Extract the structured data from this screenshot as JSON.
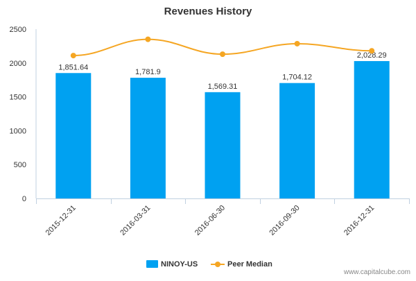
{
  "chart_data": {
    "type": "bar",
    "title": "Revenues History",
    "categories": [
      "2015-12-31",
      "2016-03-31",
      "2016-06-30",
      "2016-09-30",
      "2016-12-31"
    ],
    "series": [
      {
        "name": "NINOY-US",
        "type": "bar",
        "values": [
          1851.64,
          1781.9,
          1569.31,
          1704.12,
          2028.29
        ],
        "labels": [
          "1,851.64",
          "1,781.9",
          "1,569.31",
          "1,704.12",
          "2,028.29"
        ],
        "color": "#00a1f1"
      },
      {
        "name": "Peer Median",
        "type": "line",
        "values": [
          2110,
          2350,
          2130,
          2285,
          2180
        ],
        "color": "#f5a623"
      }
    ],
    "yticks": [
      "0",
      "500",
      "1000",
      "1500",
      "2000",
      "2500"
    ],
    "ylim": [
      0,
      2500
    ],
    "grid": false,
    "legend_position": "bottom"
  },
  "credit": "www.capitalcube.com"
}
